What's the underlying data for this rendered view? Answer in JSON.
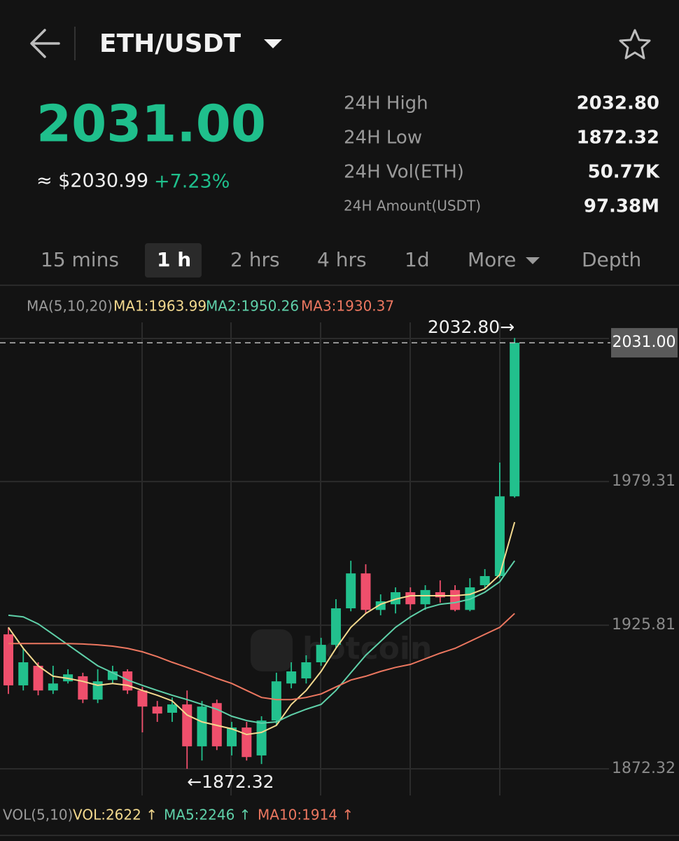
{
  "header": {
    "pair": "ETH/USDT"
  },
  "ticker": {
    "price": "2031.00",
    "fiat": "≈ $2030.99",
    "change": "+7.23%",
    "stats": [
      {
        "label": "24H High",
        "value": "2032.80"
      },
      {
        "label": "24H Low",
        "value": "1872.32"
      },
      {
        "label": "24H Vol(ETH)",
        "value": "50.77K"
      },
      {
        "label": "24H Amount(USDT)",
        "value": "97.38M"
      }
    ]
  },
  "tabs": {
    "items": [
      "15 mins",
      "1 h",
      "2 hrs",
      "4 hrs",
      "1d",
      "More",
      "Depth"
    ],
    "active": 1
  },
  "ma_legend": "MA(5,10,20)",
  "chart_data": {
    "type": "candlestick",
    "up_color": "#22c08d",
    "down_color": "#ef4f6c",
    "open": [
      1922.4,
      1903.4,
      1910.7,
      1901.5,
      1904.9,
      1906.8,
      1898.1,
      1905.4,
      1908.6,
      1901.5,
      1895.5,
      1893.2,
      1896.3,
      1880.7,
      1896.8,
      1880.7,
      1887.7,
      1877.3,
      1890.3,
      1904.1,
      1906.0,
      1912.0,
      1918.5,
      1932.1,
      1945.1,
      1931.5,
      1933.6,
      1938.1,
      1933.6,
      1938.1,
      1938.9,
      1931.5,
      1940.7,
      1944.1,
      1973.8
    ],
    "high": [
      1925.0,
      1917.2,
      1912.0,
      1910.7,
      1909.4,
      1908.1,
      1909.4,
      1910.7,
      1909.4,
      1902.8,
      1897.6,
      1898.9,
      1901.5,
      1897.6,
      1898.1,
      1889.8,
      1889.8,
      1891.9,
      1908.1,
      1912.0,
      1914.6,
      1921.1,
      1935.5,
      1949.8,
      1948.5,
      1937.3,
      1939.9,
      1939.9,
      1940.7,
      1942.5,
      1940.7,
      1943.3,
      1946.7,
      1986.4,
      2032.8
    ],
    "low": [
      1900.2,
      1901.5,
      1899.7,
      1900.2,
      1904.1,
      1896.8,
      1896.8,
      1904.1,
      1900.2,
      1885.9,
      1889.8,
      1889.8,
      1872.32,
      1875.4,
      1879.3,
      1877.3,
      1875.4,
      1874.1,
      1888.5,
      1902.3,
      1904.1,
      1910.7,
      1917.2,
      1931.0,
      1930.2,
      1929.5,
      1930.2,
      1931.5,
      1931.5,
      1934.2,
      1931.0,
      1931.0,
      1939.4,
      1943.3,
      1973.3
    ],
    "close": [
      1903.4,
      1912.0,
      1901.5,
      1904.1,
      1907.5,
      1898.1,
      1904.9,
      1908.6,
      1901.5,
      1895.5,
      1892.9,
      1896.3,
      1880.7,
      1895.5,
      1880.7,
      1887.7,
      1876.7,
      1890.3,
      1904.9,
      1908.6,
      1912.0,
      1918.5,
      1932.1,
      1945.1,
      1931.5,
      1934.7,
      1938.1,
      1933.6,
      1938.9,
      1936.2,
      1931.5,
      1939.9,
      1944.1,
      1973.8,
      2031.0
    ],
    "series": [
      {
        "label": "MA1:1963.99",
        "color": "#f3d98e",
        "values": [
          1925.0,
          1917.2,
          1910.7,
          1906.8,
          1906.0,
          1904.9,
          1903.4,
          1904.1,
          1903.4,
          1901.5,
          1899.7,
          1897.6,
          1892.4,
          1889.8,
          1888.5,
          1887.2,
          1885.1,
          1885.9,
          1888.5,
          1896.3,
          1901.5,
          1908.6,
          1917.2,
          1925.0,
          1930.2,
          1933.6,
          1935.5,
          1936.8,
          1936.8,
          1936.8,
          1936.8,
          1937.3,
          1939.4,
          1944.6,
          1964.2
        ]
      },
      {
        "label": "MA2:1950.26",
        "color": "#5fd0a9",
        "values": [
          1929.5,
          1928.9,
          1926.3,
          1922.4,
          1918.5,
          1914.6,
          1910.7,
          1908.1,
          1905.4,
          1903.4,
          1901.5,
          1899.7,
          1898.1,
          1896.3,
          1894.5,
          1891.9,
          1890.3,
          1889.3,
          1889.8,
          1892.4,
          1894.5,
          1896.3,
          1901.5,
          1908.1,
          1914.6,
          1919.8,
          1925.0,
          1928.9,
          1932.1,
          1933.6,
          1934.2,
          1935.5,
          1938.1,
          1942.0,
          1949.8
        ]
      },
      {
        "label": "MA3:1930.37",
        "color": "#ec7760",
        "values": [
          1919.0,
          1919.0,
          1919.0,
          1919.0,
          1919.0,
          1918.8,
          1918.5,
          1918.0,
          1917.2,
          1915.9,
          1914.1,
          1912.0,
          1910.1,
          1908.1,
          1906.0,
          1904.1,
          1901.5,
          1898.9,
          1898.1,
          1898.1,
          1898.9,
          1900.2,
          1902.8,
          1905.4,
          1906.8,
          1908.6,
          1910.1,
          1911.2,
          1913.3,
          1915.4,
          1917.2,
          1919.8,
          1922.4,
          1925.0,
          1930.2
        ]
      }
    ],
    "ylim": [
      1862.4,
      2039.9
    ],
    "yticks": [
      1979.31,
      1925.81,
      1872.32
    ],
    "grid": true,
    "price_line": {
      "value": 2031,
      "label": "2031.00"
    },
    "high_label": "2032.80→",
    "low_label": "←1872.32",
    "watermark": "hotcoin"
  },
  "volume_legend": {
    "title": "VOL(5,10)",
    "vol": "VOL:2622 ↑",
    "ma5": "MA5:2246 ↑",
    "ma10": "MA10:1914 ↑"
  }
}
